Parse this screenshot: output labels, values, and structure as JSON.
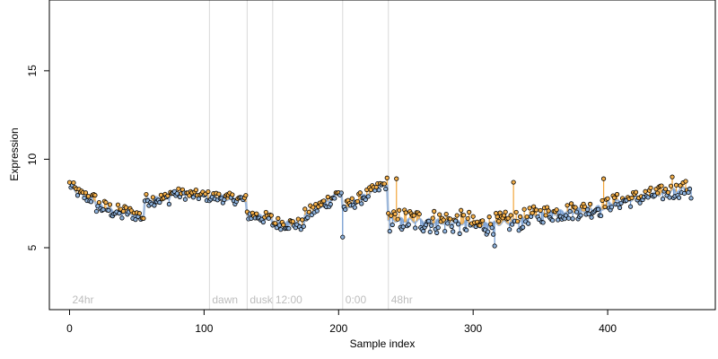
{
  "chart_data": {
    "type": "scatter",
    "title": "",
    "xlabel": "Sample index",
    "ylabel": "Expression",
    "xlim": [
      -15,
      480
    ],
    "ylim": [
      1.5,
      19
    ],
    "x_ticks": [
      0,
      100,
      200,
      300,
      400
    ],
    "y_ticks": [
      5,
      10,
      15
    ],
    "grid": false,
    "regions": [
      {
        "x": 0,
        "label": "24hr"
      },
      {
        "x": 104,
        "label": "dawn"
      },
      {
        "x": 132,
        "label": "dusk"
      },
      {
        "x": 151,
        "label": "12:00"
      },
      {
        "x": 203,
        "label": "0:00"
      },
      {
        "x": 237,
        "label": "48hr"
      }
    ],
    "series_colors": {
      "fit": "#8faed6",
      "residual_up": "#f2a63a",
      "residual_down": "#6f99d1",
      "point_fill_high": "#f5b04a",
      "point_fill_low": "#8fb3dd",
      "region_line": "#d9d9d9",
      "region_label": "#bdbdbd"
    },
    "segments": [
      {
        "x0": 0,
        "x1": 8,
        "y0": 8.6,
        "y1": 8.0,
        "amp": 0.3
      },
      {
        "x0": 8,
        "x1": 20,
        "y0": 8.0,
        "y1": 7.7,
        "amp": 0.35
      },
      {
        "x0": 20,
        "x1": 40,
        "y0": 7.4,
        "y1": 6.9,
        "amp": 0.45
      },
      {
        "x0": 40,
        "x1": 56,
        "y0": 7.1,
        "y1": 6.7,
        "amp": 0.35
      },
      {
        "x0": 56,
        "x1": 75,
        "y0": 7.7,
        "y1": 7.8,
        "amp": 0.35
      },
      {
        "x0": 75,
        "x1": 104,
        "y0": 8.1,
        "y1": 7.9,
        "amp": 0.3
      },
      {
        "x0": 104,
        "x1": 132,
        "y0": 7.9,
        "y1": 7.7,
        "amp": 0.3
      },
      {
        "x0": 132,
        "x1": 151,
        "y0": 6.9,
        "y1": 6.6,
        "amp": 0.35
      },
      {
        "x0": 151,
        "x1": 175,
        "y0": 6.4,
        "y1": 6.3,
        "amp": 0.35
      },
      {
        "x0": 175,
        "x1": 203,
        "y0": 6.8,
        "y1": 8.2,
        "amp": 0.4
      },
      {
        "x0": 203,
        "x1": 237,
        "y0": 7.2,
        "y1": 8.7,
        "amp": 0.35
      },
      {
        "x0": 237,
        "x1": 300,
        "y0": 6.6,
        "y1": 6.4,
        "amp": 0.7
      },
      {
        "x0": 300,
        "x1": 340,
        "y0": 6.2,
        "y1": 6.6,
        "amp": 0.6
      },
      {
        "x0": 340,
        "x1": 400,
        "y0": 6.8,
        "y1": 7.3,
        "amp": 0.5
      },
      {
        "x0": 400,
        "x1": 462,
        "y0": 7.5,
        "y1": 8.4,
        "amp": 0.45
      }
    ],
    "highlights": [
      {
        "x": 203,
        "y": 5.6
      },
      {
        "x": 243,
        "y": 8.9
      },
      {
        "x": 330,
        "y": 8.7
      },
      {
        "x": 316,
        "y": 5.1
      },
      {
        "x": 397,
        "y": 8.9
      },
      {
        "x": 448,
        "y": 9.0
      }
    ],
    "n_points": 463
  }
}
